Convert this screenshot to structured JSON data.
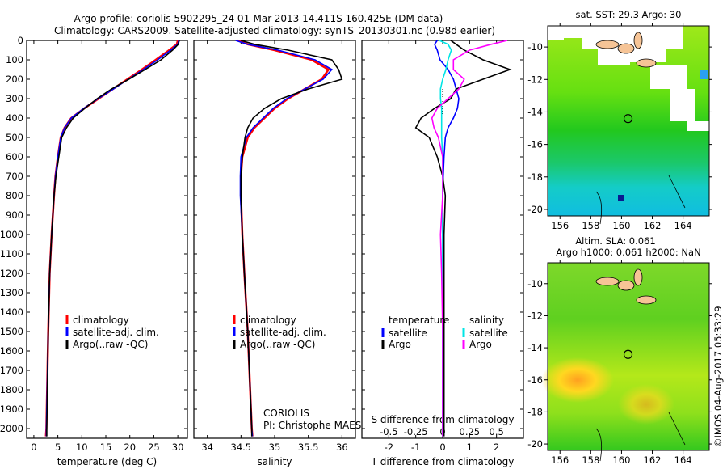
{
  "title_line1": "Argo profile: coriolis 5902295_24 01-Mar-2013 14.411S 160.425E (DM data)",
  "title_line2": "Climatology: CARS2009. Satellite-adjusted climatology: synTS_20130301.nc (0.98d earlier)",
  "colors": {
    "climatology": "#ff0000",
    "satellite": "#0000ff",
    "argo": "#000000",
    "s_satellite": "#00e5e5",
    "s_argo": "#ff00ff"
  },
  "depth_ticks": [
    "0",
    "100",
    "200",
    "300",
    "400",
    "500",
    "600",
    "700",
    "800",
    "900",
    "1000",
    "1100",
    "1200",
    "1300",
    "1400",
    "1500",
    "1600",
    "1700",
    "1800",
    "1900",
    "2000"
  ],
  "chart_data": [
    {
      "type": "line",
      "name": "temperature",
      "xlabel": "temperature (deg C)",
      "ylabel": "depth",
      "xlim": [
        -1.5,
        32
      ],
      "ylim": [
        2050,
        0
      ],
      "xticks": [
        "0",
        "5",
        "10",
        "15",
        "20",
        "25",
        "30"
      ],
      "legend": [
        "climatology",
        "satellite-adj. clim.",
        "Argo(..raw -QC)"
      ],
      "depth": [
        0,
        20,
        50,
        100,
        150,
        200,
        250,
        300,
        350,
        400,
        450,
        500,
        600,
        700,
        800,
        1000,
        1200,
        1500,
        2000,
        2040
      ],
      "series": [
        {
          "name": "climatology",
          "color_key": "climatology",
          "values": [
            30,
            29.8,
            28.2,
            25.4,
            22.5,
            19.5,
            16.5,
            13.5,
            10.5,
            7.8,
            6.4,
            5.6,
            5,
            4.5,
            4.2,
            3.7,
            3.3,
            3,
            2.6,
            2.5
          ]
        },
        {
          "name": "satellite-adj. clim.",
          "color_key": "satellite",
          "values": [
            30.2,
            30,
            28.5,
            25.8,
            22.8,
            19.7,
            16.6,
            13.4,
            10.4,
            7.8,
            6.4,
            5.6,
            5,
            4.5,
            4.2,
            3.7,
            3.3,
            3,
            2.6,
            2.6
          ]
        },
        {
          "name": "Argo",
          "color_key": "argo",
          "values": [
            30.3,
            30.1,
            28.9,
            26.5,
            23.2,
            19.8,
            16.2,
            13.2,
            10.6,
            8.2,
            6.8,
            5.8,
            5.2,
            4.6,
            4.2,
            3.7,
            3.3,
            3,
            2.7,
            2.7
          ]
        }
      ]
    },
    {
      "type": "line",
      "name": "salinity",
      "xlabel": "salinity",
      "ylabel": "depth",
      "xlim": [
        33.8,
        36.2
      ],
      "ylim": [
        2050,
        0
      ],
      "xticks": [
        "34",
        "34.5",
        "35",
        "35.5",
        "36"
      ],
      "legend": [
        "climatology",
        "satellite-adj. clim.",
        "Argo(..raw -QC)"
      ],
      "annotation": [
        "CORIOLIS",
        "PI: Christophe MAES"
      ],
      "depth": [
        0,
        20,
        50,
        100,
        150,
        200,
        250,
        300,
        350,
        400,
        450,
        500,
        600,
        700,
        800,
        1000,
        1200,
        1500,
        2000,
        2040
      ],
      "series": [
        {
          "name": "climatology",
          "color_key": "climatology",
          "values": [
            34.45,
            34.6,
            35,
            35.55,
            35.8,
            35.7,
            35.45,
            35.2,
            35,
            34.85,
            34.7,
            34.6,
            34.52,
            34.5,
            34.5,
            34.52,
            34.55,
            34.6,
            34.66,
            34.67
          ]
        },
        {
          "name": "satellite-adj. clim.",
          "color_key": "satellite",
          "values": [
            34.42,
            34.6,
            35.05,
            35.6,
            35.85,
            35.72,
            35.45,
            35.18,
            34.98,
            34.83,
            34.68,
            34.58,
            34.5,
            34.49,
            34.49,
            34.52,
            34.55,
            34.6,
            34.66,
            34.67
          ]
        },
        {
          "name": "Argo",
          "color_key": "argo",
          "values": [
            34.5,
            34.7,
            35.2,
            35.85,
            35.95,
            36,
            35.5,
            35.1,
            34.85,
            34.68,
            34.6,
            34.56,
            34.52,
            34.5,
            34.5,
            34.52,
            34.55,
            34.6,
            34.66,
            34.66
          ]
        }
      ]
    },
    {
      "type": "line",
      "name": "difference",
      "xlabel": "T difference from climatology",
      "x2label": "S difference from climatology",
      "xlim": [
        -3,
        3
      ],
      "ylim": [
        2050,
        0
      ],
      "xticks": [
        "-2",
        "-1",
        "0",
        "1",
        "2"
      ],
      "x2ticks": [
        "-0.5",
        "-0.25",
        "0",
        "0.25",
        "0.5"
      ],
      "legend_temperature": {
        "title": "temperature",
        "items": [
          "satellite",
          "Argo"
        ]
      },
      "legend_salinity": {
        "title": "salinity",
        "items": [
          "satellite",
          "Argo"
        ]
      },
      "depth": [
        0,
        20,
        50,
        100,
        150,
        200,
        250,
        300,
        350,
        400,
        450,
        500,
        600,
        700,
        800,
        1000,
        1200,
        1500,
        2000,
        2040
      ],
      "series": [
        {
          "name": "T satellite",
          "color_key": "satellite",
          "values": [
            -0.2,
            -0.3,
            -0.2,
            -0.1,
            0.2,
            0.4,
            0.5,
            0.6,
            0.55,
            0.4,
            0.2,
            0.1,
            0.05,
            0.02,
            0.0,
            0,
            0,
            0,
            0,
            0
          ]
        },
        {
          "name": "T Argo",
          "color_key": "argo",
          "values": [
            0.3,
            0.5,
            0.8,
            1.5,
            2.5,
            1.5,
            0.5,
            0.3,
            -0.3,
            -0.8,
            -1,
            -0.5,
            -0.2,
            0,
            0.1,
            0.05,
            0.05,
            0.05,
            0.05,
            0.05
          ]
        },
        {
          "name": "S satellite",
          "color_key": "s_satellite",
          "values": [
            -0.03,
            0.05,
            0.08,
            0.05,
            0.03,
            0,
            -0.02,
            -0.02,
            -0.01,
            -0.01,
            -0.01,
            -0.01,
            0,
            0,
            0,
            0,
            0,
            0,
            0,
            0
          ]
        },
        {
          "name": "S Argo",
          "color_key": "s_argo",
          "values": [
            0.6,
            0.45,
            0.25,
            0.1,
            0.1,
            0.2,
            0.15,
            0.05,
            -0.05,
            -0.1,
            -0.08,
            -0.04,
            0,
            0,
            0,
            -0.02,
            -0.01,
            0,
            0,
            0
          ]
        }
      ]
    }
  ],
  "maps": [
    {
      "title_lines": [
        "sat. SST: 29.3 Argo: 30"
      ],
      "xticks": [
        "156",
        "158",
        "160",
        "162",
        "164"
      ],
      "yticks": [
        "-10",
        "-12",
        "-14",
        "-16",
        "-18",
        "-20"
      ],
      "variable": "SST"
    },
    {
      "title_lines": [
        "Altim. SLA: 0.061",
        "Argo h1000: 0.061 h2000: NaN"
      ],
      "xticks": [
        "156",
        "158",
        "160",
        "162",
        "164"
      ],
      "yticks": [
        "-10",
        "-12",
        "-14",
        "-16",
        "-18",
        "-20"
      ],
      "variable": "SLA"
    }
  ],
  "float_position": {
    "lon": 160.425,
    "lat": -14.411
  },
  "footer": "©IMOS 04-Aug-2017 05:33:29"
}
